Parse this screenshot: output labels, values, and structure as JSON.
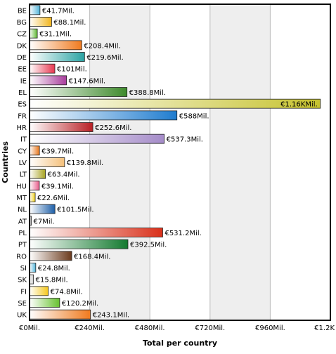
{
  "chart_data": {
    "type": "bar",
    "orientation": "horizontal",
    "xlabel": "Total per country",
    "ylabel": "Countries",
    "xlim": [
      0,
      1200
    ],
    "grid": "alternating vertical bands",
    "legend": "none",
    "x_ticks": [
      0,
      240,
      480,
      720,
      960,
      1200
    ],
    "x_tick_labels": [
      "€0Mil.",
      "€240Mil.",
      "€480Mil.",
      "€720Mil.",
      "€960Mil.",
      "€1.2K"
    ],
    "categories": [
      "BE",
      "BG",
      "CZ",
      "DK",
      "DE",
      "EE",
      "IE",
      "EL",
      "ES",
      "FR",
      "HR",
      "IT",
      "CY",
      "LV",
      "LT",
      "HU",
      "MT",
      "NL",
      "AT",
      "PL",
      "PT",
      "RO",
      "SI",
      "SK",
      "FI",
      "SE",
      "UK"
    ],
    "values": [
      41.7,
      88.1,
      31.1,
      208.4,
      219.6,
      101,
      147.6,
      388.8,
      1160,
      588,
      252.6,
      537.3,
      39.7,
      139.8,
      63.4,
      39.1,
      22.6,
      101.5,
      7,
      531.2,
      392.5,
      168.4,
      24.8,
      15.8,
      74.8,
      120.2,
      243.1
    ],
    "value_labels": [
      "€41.7Mil.",
      "€88.1Mil.",
      "€31.1Mil.",
      "€208.4Mil.",
      "€219.6Mil.",
      "€101Mil.",
      "€147.6Mil.",
      "€388.8Mil.",
      "€1.16KMil.",
      "€588Mil.",
      "€252.6Mil.",
      "€537.3Mil.",
      "€39.7Mil.",
      "€139.8Mil.",
      "€63.4Mil.",
      "€39.1Mil.",
      "€22.6Mil.",
      "€101.5Mil.",
      "€7Mil.",
      "€531.2Mil.",
      "€392.5Mil.",
      "€168.4Mil.",
      "€24.8Mil.",
      "€15.8Mil.",
      "€74.8Mil.",
      "€120.2Mil.",
      "€243.1Mil."
    ],
    "colors": [
      "#4fb3d9",
      "#f2b51c",
      "#5cb82e",
      "#f07a1e",
      "#2aa3a3",
      "#e8364f",
      "#a83d9c",
      "#3e8a2c",
      "#c6c22e",
      "#1f7ccf",
      "#b81f24",
      "#a58cc9",
      "#e8761b",
      "#f5c07a",
      "#a8a320",
      "#e85a8a",
      "#f2d21c",
      "#1d5fa8",
      "#9a9a9a",
      "#d9301a",
      "#137a2f",
      "#6b3a1c",
      "#4fb3d9",
      "#c8c8c8",
      "#f5c81c",
      "#66c22e",
      "#f07a1e"
    ]
  }
}
